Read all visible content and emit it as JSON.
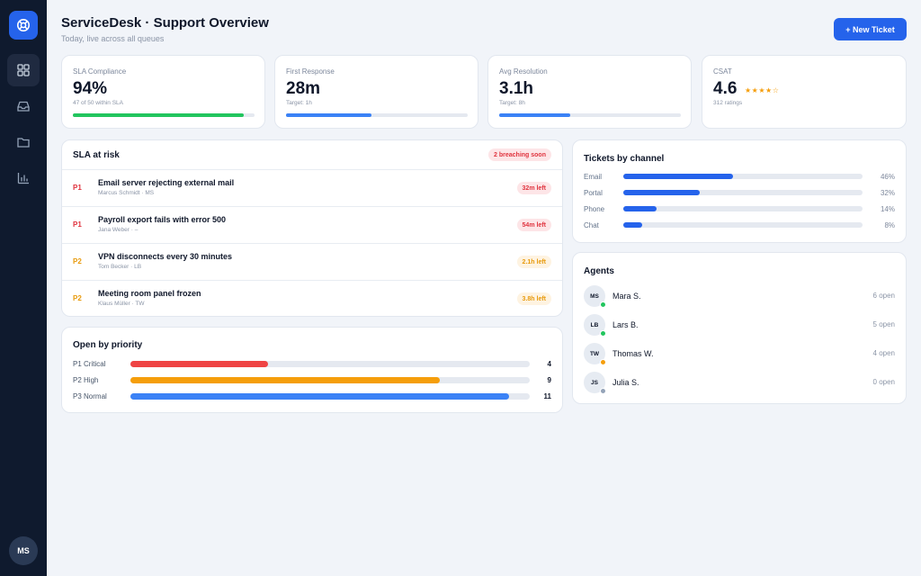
{
  "header": {
    "title": "ServiceDesk · Support Overview",
    "subtitle": "Today, live across all queues",
    "new_ticket_label": "+ New Ticket"
  },
  "sidebar": {
    "logo_icon": "lifebuoy-icon",
    "items": [
      {
        "icon": "grid-icon",
        "active": true
      },
      {
        "icon": "inbox-icon",
        "active": false
      },
      {
        "icon": "folder-icon",
        "active": false
      },
      {
        "icon": "bar-chart-icon",
        "active": false
      }
    ],
    "user_initials": "MS"
  },
  "kpis": {
    "sla": {
      "label": "SLA Compliance",
      "value": "94%",
      "sub": "47 of 50 within SLA",
      "progress": 0.94,
      "color": "#22c55e"
    },
    "first_response": {
      "label": "First Response",
      "value": "28m",
      "sub": "Target: 1h",
      "progress": 0.47,
      "color": "#3b82f6"
    },
    "avg_resolution": {
      "label": "Avg Resolution",
      "value": "3.1h",
      "sub": "Target: 8h",
      "progress": 0.39,
      "color": "#3b82f6"
    },
    "csat": {
      "label": "CSAT",
      "value": "4.6",
      "stars": "★★★★☆",
      "sub": "312 ratings"
    }
  },
  "sla_risk": {
    "title": "SLA at risk",
    "badge": "2 breaching soon",
    "items": [
      {
        "priority": "P1",
        "title": "Email server rejecting external mail",
        "meta": "Marcus Schmidt · MS",
        "time": "32m left",
        "severity": "red"
      },
      {
        "priority": "P1",
        "title": "Payroll export fails with error 500",
        "meta": "Jana Weber · –",
        "time": "54m left",
        "severity": "red"
      },
      {
        "priority": "P2",
        "title": "VPN disconnects every 30 minutes",
        "meta": "Tom Becker · LB",
        "time": "2.1h left",
        "severity": "amber"
      },
      {
        "priority": "P2",
        "title": "Meeting room panel frozen",
        "meta": "Klaus Müller · TW",
        "time": "3.8h left",
        "severity": "amber"
      }
    ]
  },
  "priority": {
    "title": "Open by priority",
    "max": 11.6,
    "rows": [
      {
        "label": "P1 Critical",
        "count": "4",
        "value": 4,
        "color": "#ef4444"
      },
      {
        "label": "P2 High",
        "count": "9",
        "value": 9,
        "color": "#f59e0b"
      },
      {
        "label": "P3 Normal",
        "count": "11",
        "value": 11,
        "color": "#3b82f6"
      }
    ]
  },
  "channels": {
    "title": "Tickets by channel",
    "rows": [
      {
        "label": "Email",
        "pct": "46%",
        "value": 46
      },
      {
        "label": "Portal",
        "pct": "32%",
        "value": 32
      },
      {
        "label": "Phone",
        "pct": "14%",
        "value": 14
      },
      {
        "label": "Chat",
        "pct": "8%",
        "value": 8
      }
    ],
    "color": "#2563eb"
  },
  "agents": {
    "title": "Agents",
    "items": [
      {
        "initials": "MS",
        "name": "Mara S.",
        "open": "6 open",
        "status_color": "#22c55e"
      },
      {
        "initials": "LB",
        "name": "Lars B.",
        "open": "5 open",
        "status_color": "#22c55e"
      },
      {
        "initials": "TW",
        "name": "Thomas W.",
        "open": "4 open",
        "status_color": "#f59e0b"
      },
      {
        "initials": "JS",
        "name": "Julia S.",
        "open": "0 open",
        "status_color": "#94a3b8"
      }
    ]
  }
}
